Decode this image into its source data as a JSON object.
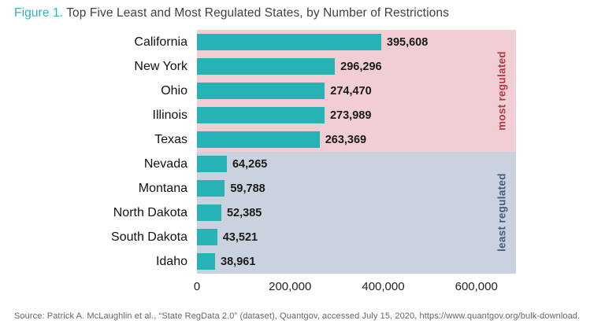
{
  "title": {
    "figure_label": "Figure 1.",
    "text": " Top Five Least and Most Regulated States, by Number of Restrictions"
  },
  "chart_data": {
    "type": "bar",
    "orientation": "horizontal",
    "title": "Top Five Least and Most Regulated States, by Number of Restrictions",
    "xlabel": "",
    "ylabel": "",
    "xlim": [
      0,
      685000
    ],
    "grid": false,
    "bar_color": "#27b2b5",
    "x_ticks": [
      {
        "value": 0,
        "label": "0"
      },
      {
        "value": 200000,
        "label": "200,000"
      },
      {
        "value": 400000,
        "label": "400,000"
      },
      {
        "value": 600000,
        "label": "600,000"
      }
    ],
    "groups": [
      {
        "name": "most regulated",
        "band_color": "#f1ced3",
        "label_color": "#b13a4a"
      },
      {
        "name": "least regulated",
        "band_color": "#cbd2df",
        "label_color": "#475a7d"
      }
    ],
    "rows": [
      {
        "state": "California",
        "value": 395608,
        "label": "395,608",
        "group": 0
      },
      {
        "state": "New York",
        "value": 296296,
        "label": "296,296",
        "group": 0
      },
      {
        "state": "Ohio",
        "value": 274470,
        "label": "274,470",
        "group": 0
      },
      {
        "state": "Illinois",
        "value": 273989,
        "label": "273,989",
        "group": 0
      },
      {
        "state": "Texas",
        "value": 263369,
        "label": "263,369",
        "group": 0
      },
      {
        "state": "Nevada",
        "value": 64265,
        "label": "64,265",
        "group": 1
      },
      {
        "state": "Montana",
        "value": 59788,
        "label": "59,788",
        "group": 1
      },
      {
        "state": "North Dakota",
        "value": 52385,
        "label": "52,385",
        "group": 1
      },
      {
        "state": "South Dakota",
        "value": 43521,
        "label": "43,521",
        "group": 1
      },
      {
        "state": "Idaho",
        "value": 38961,
        "label": "38,961",
        "group": 1
      }
    ]
  },
  "source": "Source: Patrick A. McLaughlin et al., “State RegData 2.0” (dataset), Quantgov, accessed July 15, 2020, https://www.quantgov.org/bulk-download."
}
